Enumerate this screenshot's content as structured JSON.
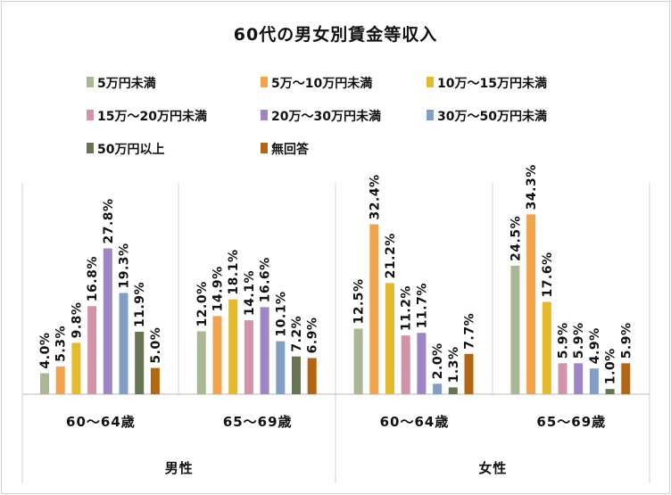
{
  "chart_data": {
    "type": "bar",
    "title": "60代の男女別賃金等収入",
    "categories": [
      {
        "group": "男性",
        "label": "60～64歳"
      },
      {
        "group": "男性",
        "label": "65～69歳"
      },
      {
        "group": "女性",
        "label": "60～64歳"
      },
      {
        "group": "女性",
        "label": "65～69歳"
      }
    ],
    "groups": [
      "男性",
      "女性"
    ],
    "series": [
      {
        "name": "5万円未満",
        "color": "#a9b894",
        "values": [
          4.0,
          12.0,
          12.5,
          24.5
        ]
      },
      {
        "name": "5万～10万円未満",
        "color": "#f3a44b",
        "values": [
          5.3,
          14.9,
          32.4,
          34.3
        ]
      },
      {
        "name": "10万～15万円未満",
        "color": "#e5bb2b",
        "values": [
          9.8,
          18.1,
          21.2,
          17.6
        ]
      },
      {
        "name": "15万～20万円未満",
        "color": "#d392a5",
        "values": [
          16.8,
          14.1,
          11.2,
          5.9
        ]
      },
      {
        "name": "20万～30万円未満",
        "color": "#9d86c3",
        "values": [
          27.8,
          16.6,
          11.7,
          5.9
        ]
      },
      {
        "name": "30万～50万円未満",
        "color": "#7f9fc6",
        "values": [
          19.3,
          10.1,
          2.0,
          4.9
        ]
      },
      {
        "name": "50万円以上",
        "color": "#657551",
        "values": [
          11.9,
          7.2,
          1.3,
          1.0
        ]
      },
      {
        "name": "無回答",
        "color": "#b4650f",
        "values": [
          5.0,
          6.9,
          7.7,
          5.9
        ]
      }
    ],
    "value_format": "percent, 1 decimal",
    "legend_position": "top",
    "grid": false,
    "ylim": [
      0,
      40
    ]
  }
}
